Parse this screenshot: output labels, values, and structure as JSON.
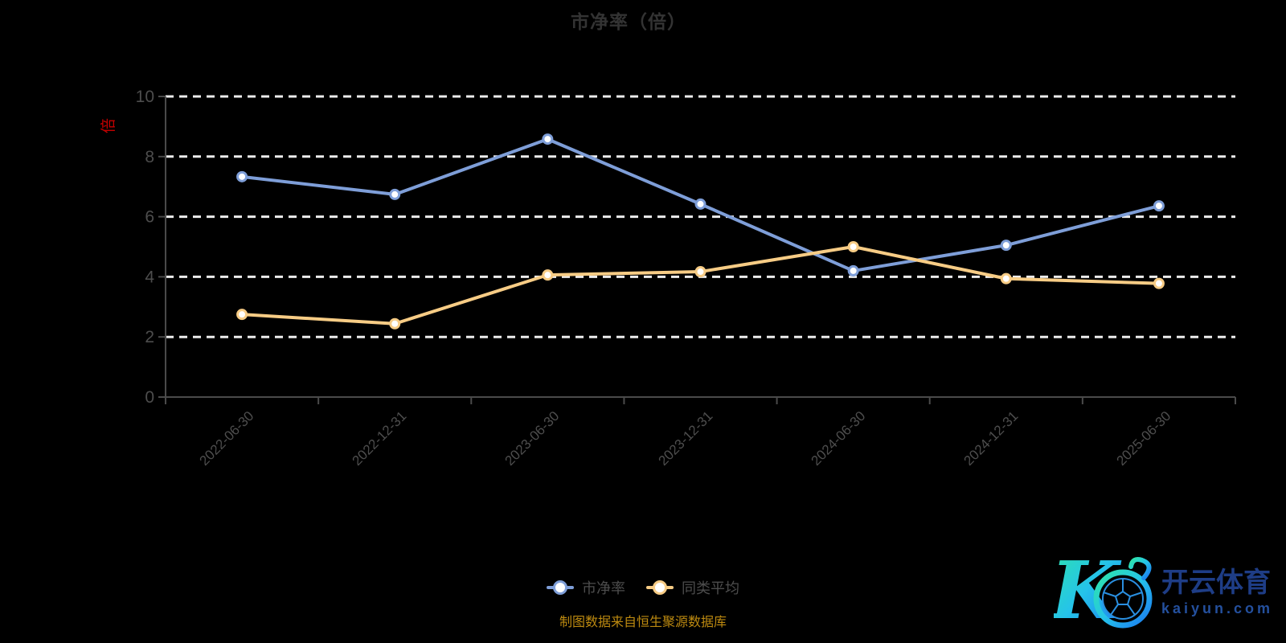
{
  "title": "市净率（倍）",
  "y_axis_name": "倍",
  "caption": "制图数据来自恒生聚源数据库",
  "colors": {
    "background": "#000000",
    "title_text": "#333333",
    "axis_label": "#4d4d4d",
    "axis_line": "#4a4a4a",
    "grid_line": "#ececec",
    "y_axis_name": "#c40000",
    "caption_text": "#bd8a10",
    "series_pb": "#7e9ed8",
    "series_avg": "#f7cc85",
    "marker_fill": "#ffffff",
    "logo_text": "#1e3d86",
    "logo_gradient_start": "#2ee6a8",
    "logo_gradient_mid": "#25c3ea",
    "logo_gradient_end": "#1b79f0"
  },
  "chart_data": {
    "type": "line",
    "title": "市净率（倍）",
    "categories": [
      "2022-06-30",
      "2022-12-31",
      "2023-06-30",
      "2023-12-31",
      "2024-06-30",
      "2024-12-31",
      "2025-06-30"
    ],
    "series": [
      {
        "name": "市净率",
        "color": "#7e9ed8",
        "values": [
          7.33,
          6.74,
          8.58,
          6.42,
          4.2,
          5.05,
          6.36
        ]
      },
      {
        "name": "同类平均",
        "color": "#f7cc85",
        "values": [
          2.75,
          2.44,
          4.06,
          4.17,
          5.0,
          3.94,
          3.78
        ]
      }
    ],
    "xlabel": "",
    "ylabel": "倍",
    "ylim": [
      0,
      10
    ],
    "yticks": [
      0,
      2,
      4,
      6,
      8,
      10
    ],
    "grid": "horizontal dashed white lines",
    "legend_position": "bottom",
    "x_label_rotation": 45
  },
  "legend": {
    "items": [
      {
        "label": "市净率"
      },
      {
        "label": "同类平均"
      }
    ]
  },
  "logo": {
    "mark": "K",
    "brand": "开云体育",
    "domain": "kaiyun.com"
  }
}
